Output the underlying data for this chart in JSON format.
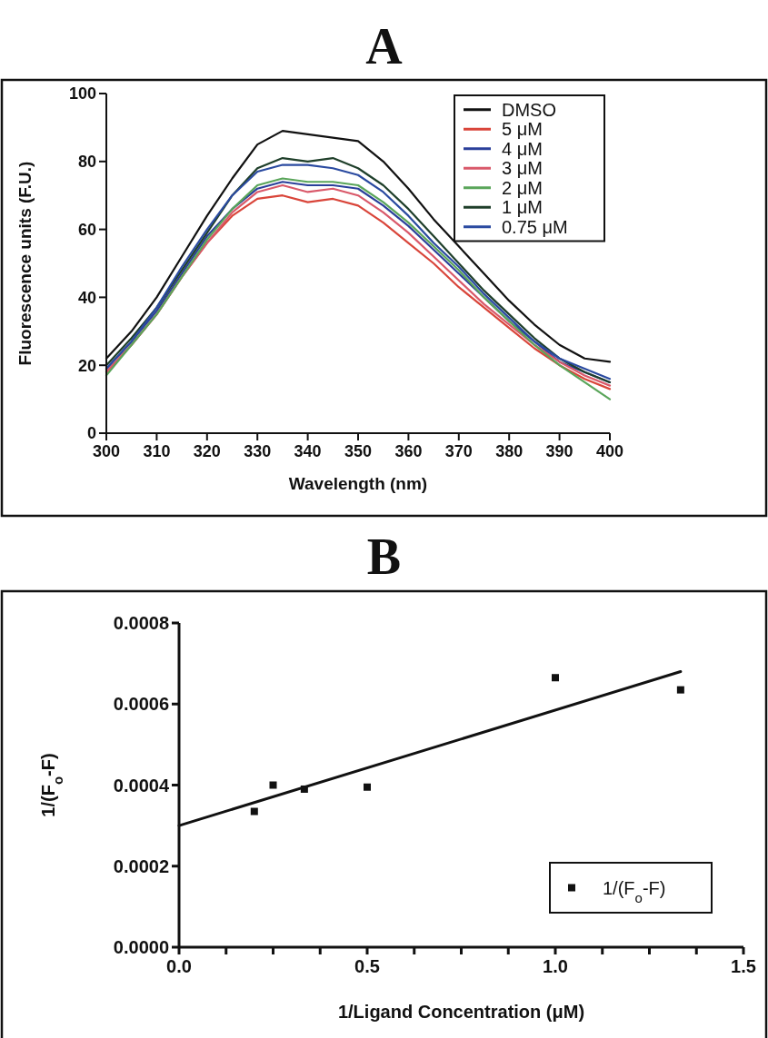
{
  "chart_data": [
    {
      "type": "line",
      "title": "A",
      "xlabel": "Wavelength (nm)",
      "ylabel": "Fluorescence units (F.U.)",
      "xlim": [
        300,
        400
      ],
      "ylim": [
        0,
        100
      ],
      "xticks": [
        300,
        310,
        320,
        330,
        340,
        350,
        360,
        370,
        380,
        390,
        400
      ],
      "yticks": [
        0,
        20,
        40,
        60,
        80,
        100
      ],
      "legend": "top right",
      "x": [
        300,
        305,
        310,
        315,
        320,
        325,
        330,
        335,
        340,
        345,
        350,
        355,
        360,
        365,
        370,
        375,
        380,
        385,
        390,
        395,
        400
      ],
      "series": [
        {
          "name": "DMSO",
          "color": "#111111",
          "values": [
            22,
            30,
            40,
            52,
            64,
            75,
            85,
            89,
            88,
            87,
            86,
            80,
            72,
            63,
            55,
            47,
            39,
            32,
            26,
            22,
            21
          ]
        },
        {
          "name": "5 μM",
          "color": "#d9453a",
          "values": [
            18,
            26,
            35,
            46,
            56,
            64,
            69,
            70,
            68,
            69,
            67,
            62,
            56,
            50,
            43,
            37,
            31,
            25,
            20,
            16,
            13
          ]
        },
        {
          "name": "4 μM",
          "color": "#2a3f9a",
          "values": [
            19,
            27,
            36,
            47,
            58,
            66,
            72,
            74,
            73,
            73,
            72,
            67,
            61,
            54,
            47,
            40,
            33,
            27,
            21,
            18,
            15
          ]
        },
        {
          "name": "3 μM",
          "color": "#d9596a",
          "values": [
            18,
            26,
            35,
            46,
            56,
            65,
            71,
            73,
            71,
            72,
            70,
            65,
            59,
            52,
            45,
            38,
            32,
            26,
            21,
            17,
            14
          ]
        },
        {
          "name": "2 μM",
          "color": "#5aa55a",
          "values": [
            17,
            26,
            35,
            46,
            57,
            66,
            73,
            75,
            74,
            74,
            73,
            68,
            62,
            55,
            48,
            40,
            33,
            26,
            20,
            15,
            10
          ]
        },
        {
          "name": "1 μM",
          "color": "#1f3f2a",
          "values": [
            20,
            28,
            37,
            48,
            59,
            70,
            78,
            81,
            80,
            81,
            78,
            73,
            66,
            58,
            50,
            42,
            35,
            28,
            22,
            18,
            15
          ]
        },
        {
          "name": "0.75 μM",
          "color": "#2a4aa0",
          "values": [
            19,
            27,
            37,
            49,
            60,
            70,
            77,
            79,
            79,
            78,
            76,
            71,
            64,
            56,
            49,
            41,
            34,
            27,
            22,
            19,
            16
          ]
        }
      ]
    },
    {
      "type": "scatter",
      "title": "B",
      "xlabel": "1/Ligand Concentration (μM)",
      "ylabel": "1/(F$_{o}$-F)",
      "xlim": [
        0,
        1.5
      ],
      "ylim": [
        0,
        0.0008
      ],
      "legend": "bottom right",
      "xticks": [
        {
          "value": 0,
          "label": "0.0"
        },
        {
          "value": 0.125,
          "label": null
        },
        {
          "value": 0.25,
          "label": null
        },
        {
          "value": 0.375,
          "label": null
        },
        {
          "value": 0.5,
          "label": "0.5"
        },
        {
          "value": 0.625,
          "label": null
        },
        {
          "value": 0.75,
          "label": null
        },
        {
          "value": 0.875,
          "label": null
        },
        {
          "value": 1,
          "label": "1.0"
        },
        {
          "value": 1.125,
          "label": null
        },
        {
          "value": 1.25,
          "label": null
        },
        {
          "value": 1.375,
          "label": null
        },
        {
          "value": 1.5,
          "label": "1.5"
        }
      ],
      "yticks": [
        {
          "value": 0,
          "label": "0.0000"
        },
        {
          "value": 0.0002,
          "label": "0.0002"
        },
        {
          "value": 0.0004,
          "label": "0.0004"
        },
        {
          "value": 0.0006,
          "label": "0.0006"
        },
        {
          "value": 0.0008,
          "label": "0.0008"
        }
      ],
      "series": [
        {
          "name": "1/(F$_{o}$-F)",
          "color": "#111111",
          "marker": "square",
          "x": [
            0.2,
            0.25,
            0.333,
            0.5,
            1,
            1.333
          ],
          "values": [
            0.000335,
            0.0004,
            0.00039,
            0.000395,
            0.000665,
            0.000635
          ]
        },
        {
          "type": "line",
          "color": "#111111",
          "x": [
            0,
            1.333
          ],
          "values": [
            0.0003,
            0.00068
          ]
        }
      ]
    }
  ]
}
